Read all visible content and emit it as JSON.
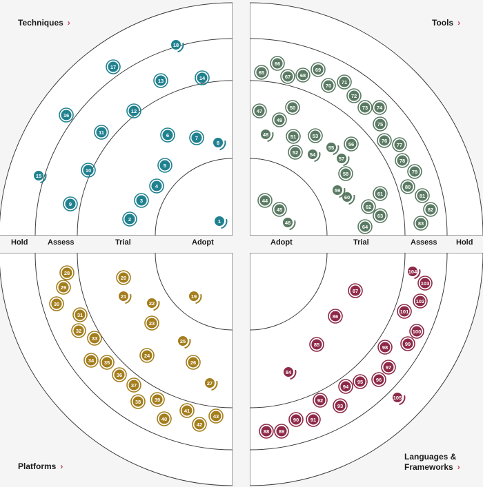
{
  "quadrants": {
    "techniques": {
      "label": "Techniques",
      "color": "#20818f"
    },
    "tools": {
      "label": "Tools",
      "color": "#5a7a63"
    },
    "platforms": {
      "label": "Platforms",
      "color": "#a47e1d"
    },
    "languages": {
      "label": "Languages &",
      "label2": "Frameworks",
      "color": "#8e2a48"
    }
  },
  "chevron": "›",
  "rings_left": {
    "hold": "Hold",
    "assess": "Assess",
    "trial": "Trial",
    "adopt": "Adopt"
  },
  "rings_right": {
    "adopt": "Adopt",
    "trial": "Trial",
    "assess": "Assess",
    "hold": "Hold"
  },
  "blips": {
    "techniques": [
      "1",
      "2",
      "3",
      "4",
      "5",
      "6",
      "7",
      "8",
      "9",
      "10",
      "11",
      "12",
      "13",
      "14",
      "15",
      "16",
      "17",
      "18"
    ],
    "tools": [
      "44",
      "45",
      "46",
      "47",
      "48",
      "49",
      "50",
      "51",
      "52",
      "53",
      "54",
      "55",
      "56",
      "57",
      "58",
      "59",
      "60",
      "61",
      "62",
      "63",
      "64",
      "65",
      "66",
      "67",
      "68",
      "69",
      "70",
      "71",
      "72",
      "73",
      "74",
      "75",
      "76",
      "77",
      "78",
      "79",
      "80",
      "81",
      "82",
      "83"
    ],
    "platforms": [
      "19",
      "20",
      "21",
      "22",
      "23",
      "24",
      "25",
      "26",
      "27",
      "28",
      "29",
      "30",
      "31",
      "32",
      "33",
      "34",
      "35",
      "36",
      "37",
      "38",
      "39",
      "40",
      "41",
      "42",
      "43"
    ],
    "languages": [
      "84",
      "85",
      "86",
      "87",
      "88",
      "89",
      "90",
      "91",
      "92",
      "93",
      "94",
      "95",
      "96",
      "97",
      "98",
      "99",
      "100",
      "101",
      "102",
      "103",
      "104",
      "105"
    ]
  }
}
